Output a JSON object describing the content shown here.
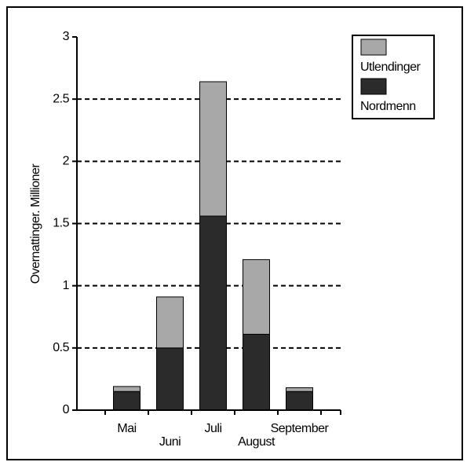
{
  "chart_data": {
    "type": "stacked_bar",
    "y_label": "Overnattinger. Millioner",
    "categories": [
      "Mai",
      "Juni",
      "Juli",
      "August",
      "September"
    ],
    "series": [
      {
        "name": "Nordmenn",
        "color": "#2b2b2b",
        "values": [
          0.15,
          0.5,
          1.56,
          0.61,
          0.15
        ]
      },
      {
        "name": "Utlendinger",
        "color": "#a8a8a8",
        "values": [
          0.04,
          0.41,
          1.08,
          0.6,
          0.03
        ]
      }
    ],
    "ylim": [
      0,
      3
    ],
    "yticks": [
      0,
      0.5,
      1,
      1.5,
      2,
      2.5,
      3
    ],
    "grid": true
  }
}
